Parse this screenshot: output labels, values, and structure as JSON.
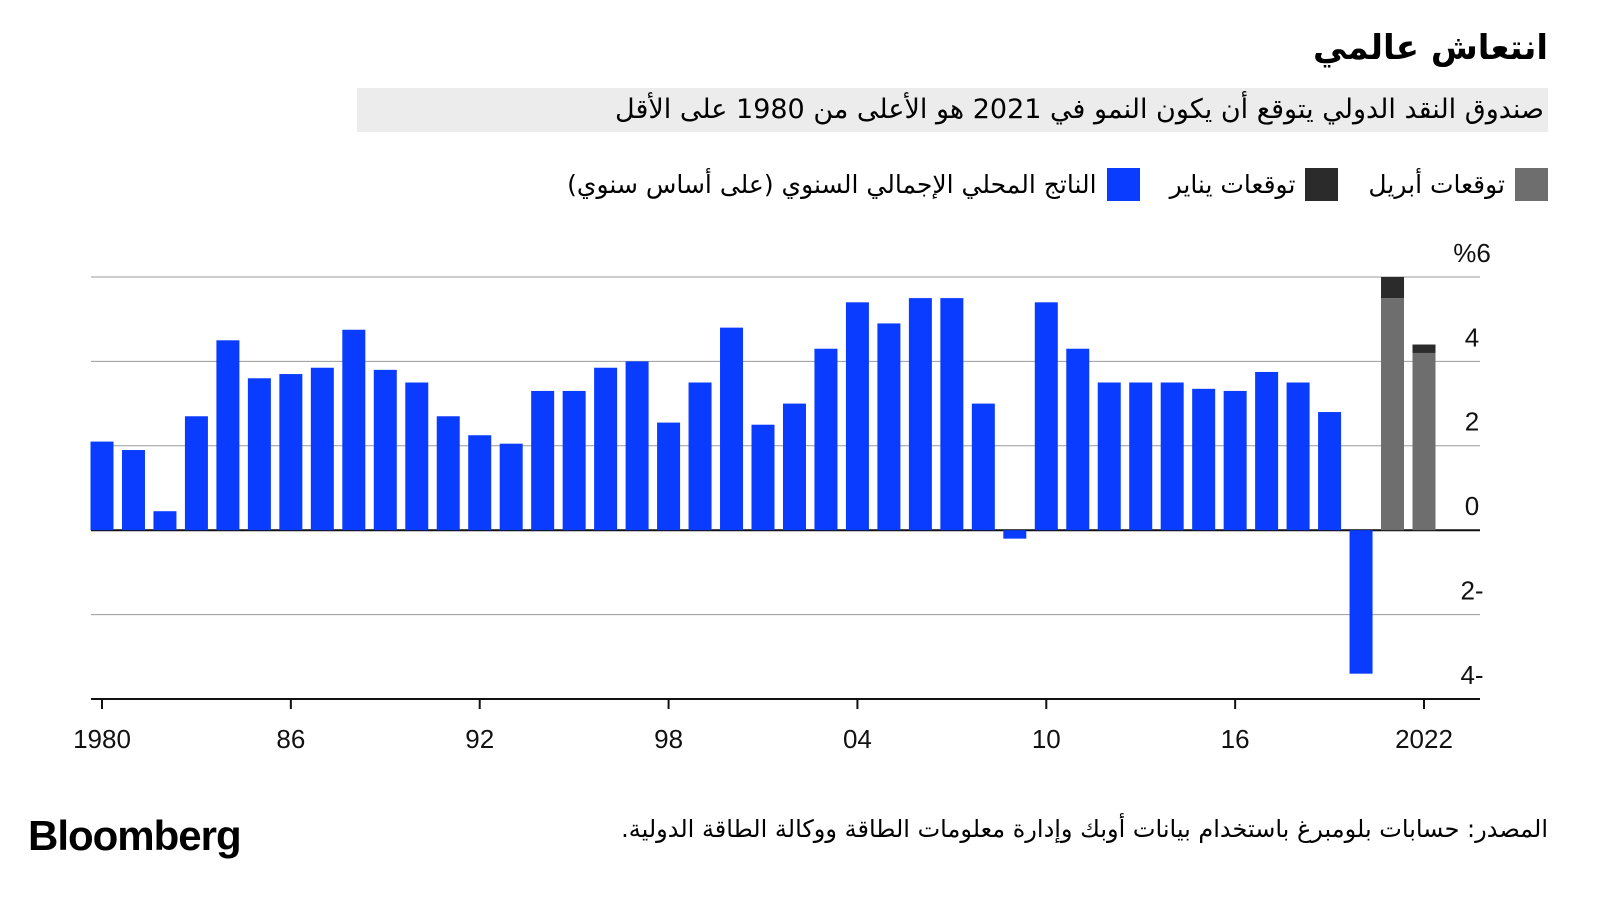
{
  "title": "انتعاش عالمي",
  "subtitle": "صندوق النقد الدولي يتوقع أن يكون النمو في 2021 هو الأعلى من 1980 على الأقل",
  "source": "المصدر: حسابات بلومبرغ باستخدام بيانات أوبك وإدارة معلومات الطاقة ووكالة الطاقة الدولية.",
  "brand": "Bloomberg",
  "chart_data": {
    "type": "bar",
    "stacked": true,
    "categories": [
      "1980",
      null,
      null,
      null,
      null,
      null,
      "86",
      null,
      null,
      null,
      null,
      null,
      "92",
      null,
      null,
      null,
      null,
      null,
      "98",
      null,
      null,
      null,
      null,
      null,
      "04",
      null,
      null,
      null,
      null,
      null,
      "10",
      null,
      null,
      null,
      null,
      null,
      "16",
      null,
      null,
      null,
      null,
      null,
      "2022"
    ],
    "series": [
      {
        "name": "توقعات أبريل",
        "color": "#6e6e6e",
        "values": [
          null,
          null,
          null,
          null,
          null,
          null,
          null,
          null,
          null,
          null,
          null,
          null,
          null,
          null,
          null,
          null,
          null,
          null,
          null,
          null,
          null,
          null,
          null,
          null,
          null,
          null,
          null,
          null,
          null,
          null,
          null,
          null,
          null,
          null,
          null,
          null,
          null,
          null,
          null,
          null,
          null,
          5.5,
          4.2
        ]
      },
      {
        "name": "توقعات يناير",
        "color": "#2b2b2b",
        "values": [
          null,
          null,
          null,
          null,
          null,
          null,
          null,
          null,
          null,
          null,
          null,
          null,
          null,
          null,
          null,
          null,
          null,
          null,
          null,
          null,
          null,
          null,
          null,
          null,
          null,
          null,
          null,
          null,
          null,
          null,
          null,
          null,
          null,
          null,
          null,
          null,
          null,
          null,
          null,
          null,
          null,
          0.5,
          0.2
        ]
      },
      {
        "name": "الناتج المحلي الإجمالي السنوي (على أساس سنوي)",
        "color": "#0a3cff",
        "values": [
          2.1,
          1.9,
          0.45,
          2.7,
          4.5,
          3.6,
          3.7,
          3.85,
          4.75,
          3.8,
          3.5,
          2.7,
          2.25,
          2.05,
          3.3,
          3.3,
          3.85,
          4.0,
          2.55,
          3.5,
          4.8,
          2.5,
          3.0,
          4.3,
          5.4,
          4.9,
          5.5,
          5.5,
          3.0,
          -0.2,
          5.4,
          4.3,
          3.5,
          3.5,
          3.5,
          3.35,
          3.3,
          3.75,
          3.5,
          2.8,
          -3.4,
          null,
          null
        ]
      }
    ],
    "ylim": [
      -4,
      6
    ],
    "yticks": [
      {
        "value": -4,
        "label": "4-"
      },
      {
        "value": -2,
        "label": "2-"
      },
      0,
      2,
      4,
      {
        "value": 6,
        "label": "%6"
      }
    ],
    "grid": true
  }
}
